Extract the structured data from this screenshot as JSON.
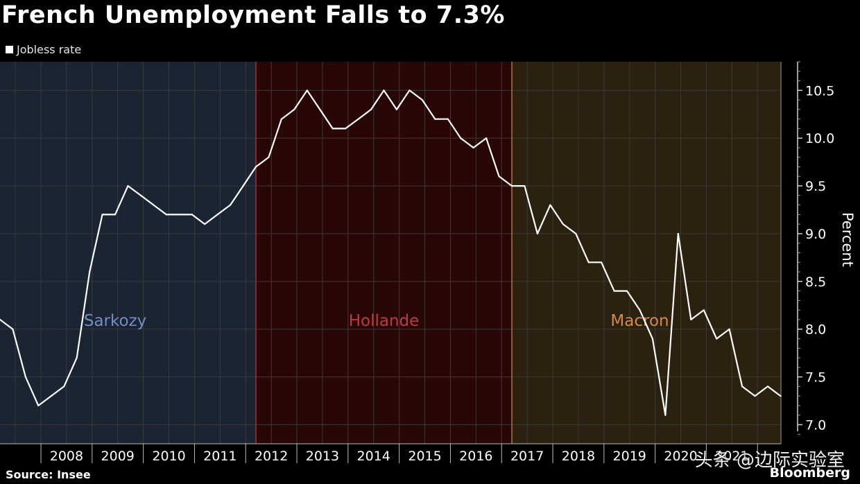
{
  "header": {
    "title": "French Unemployment Falls to 7.3%",
    "legend_label": "Jobless rate"
  },
  "footer": {
    "source": "Source: Insee",
    "brand": "Bloomberg",
    "watermark": "头条 @边际实验室"
  },
  "chart_data": {
    "type": "line",
    "title": "French Unemployment Falls to 7.3%",
    "ylabel": "Percent",
    "ylim": [
      6.8,
      10.8
    ],
    "yticks": [
      7.0,
      7.5,
      8.0,
      8.5,
      9.0,
      9.5,
      10.0,
      10.5
    ],
    "xlim": [
      2007.2,
      2022.7
    ],
    "year_labels": [
      "2008",
      "2009",
      "2010",
      "2011",
      "2012",
      "2013",
      "2014",
      "2015",
      "2016",
      "2017",
      "2018",
      "2019",
      "2020",
      "2021"
    ],
    "grid": true,
    "legend": "top-left",
    "series": [
      {
        "name": "Jobless rate",
        "color": "#ffffff",
        "points": [
          [
            2007.2,
            8.1
          ],
          [
            2007.45,
            8.0
          ],
          [
            2007.7,
            7.5
          ],
          [
            2007.95,
            7.2
          ],
          [
            2008.2,
            7.3
          ],
          [
            2008.45,
            7.4
          ],
          [
            2008.7,
            7.7
          ],
          [
            2008.95,
            8.6
          ],
          [
            2009.2,
            9.2
          ],
          [
            2009.45,
            9.2
          ],
          [
            2009.7,
            9.5
          ],
          [
            2009.95,
            9.4
          ],
          [
            2010.2,
            9.3
          ],
          [
            2010.45,
            9.2
          ],
          [
            2010.7,
            9.2
          ],
          [
            2010.95,
            9.2
          ],
          [
            2011.2,
            9.1
          ],
          [
            2011.45,
            9.2
          ],
          [
            2011.7,
            9.3
          ],
          [
            2011.95,
            9.5
          ],
          [
            2012.2,
            9.7
          ],
          [
            2012.45,
            9.8
          ],
          [
            2012.7,
            10.2
          ],
          [
            2012.95,
            10.3
          ],
          [
            2013.2,
            10.5
          ],
          [
            2013.45,
            10.3
          ],
          [
            2013.7,
            10.1
          ],
          [
            2013.95,
            10.1
          ],
          [
            2014.2,
            10.2
          ],
          [
            2014.45,
            10.3
          ],
          [
            2014.7,
            10.5
          ],
          [
            2014.95,
            10.3
          ],
          [
            2015.2,
            10.5
          ],
          [
            2015.45,
            10.4
          ],
          [
            2015.7,
            10.2
          ],
          [
            2015.95,
            10.2
          ],
          [
            2016.2,
            10.0
          ],
          [
            2016.45,
            9.9
          ],
          [
            2016.7,
            10.0
          ],
          [
            2016.95,
            9.6
          ],
          [
            2017.2,
            9.5
          ],
          [
            2017.45,
            9.5
          ],
          [
            2017.7,
            9.0
          ],
          [
            2017.95,
            9.3
          ],
          [
            2018.2,
            9.1
          ],
          [
            2018.45,
            9.0
          ],
          [
            2018.7,
            8.7
          ],
          [
            2018.95,
            8.7
          ],
          [
            2019.2,
            8.4
          ],
          [
            2019.45,
            8.4
          ],
          [
            2019.7,
            8.2
          ],
          [
            2019.95,
            7.9
          ],
          [
            2020.2,
            7.1
          ],
          [
            2020.45,
            9.0
          ],
          [
            2020.7,
            8.1
          ],
          [
            2020.95,
            8.2
          ],
          [
            2021.2,
            7.9
          ],
          [
            2021.45,
            8.0
          ],
          [
            2021.7,
            7.4
          ],
          [
            2021.95,
            7.3
          ],
          [
            2022.2,
            7.4
          ],
          [
            2022.45,
            7.3
          ]
        ]
      }
    ],
    "periods": [
      {
        "label": "Sarkozy",
        "start": 2007.2,
        "end": 2012.2,
        "fill": "#1b2433",
        "text_color": "#6f8fc4",
        "label_x": 2009.45
      },
      {
        "label": "Hollande",
        "start": 2012.2,
        "end": 2017.2,
        "fill": "#2a0707",
        "text_color": "#c0393d",
        "label_x": 2014.7
      },
      {
        "label": "Macron",
        "start": 2017.2,
        "end": 2022.65,
        "fill": "#2a220f",
        "text_color": "#d4884a",
        "label_x": 2019.7
      }
    ],
    "period_label_y": 8.1
  }
}
